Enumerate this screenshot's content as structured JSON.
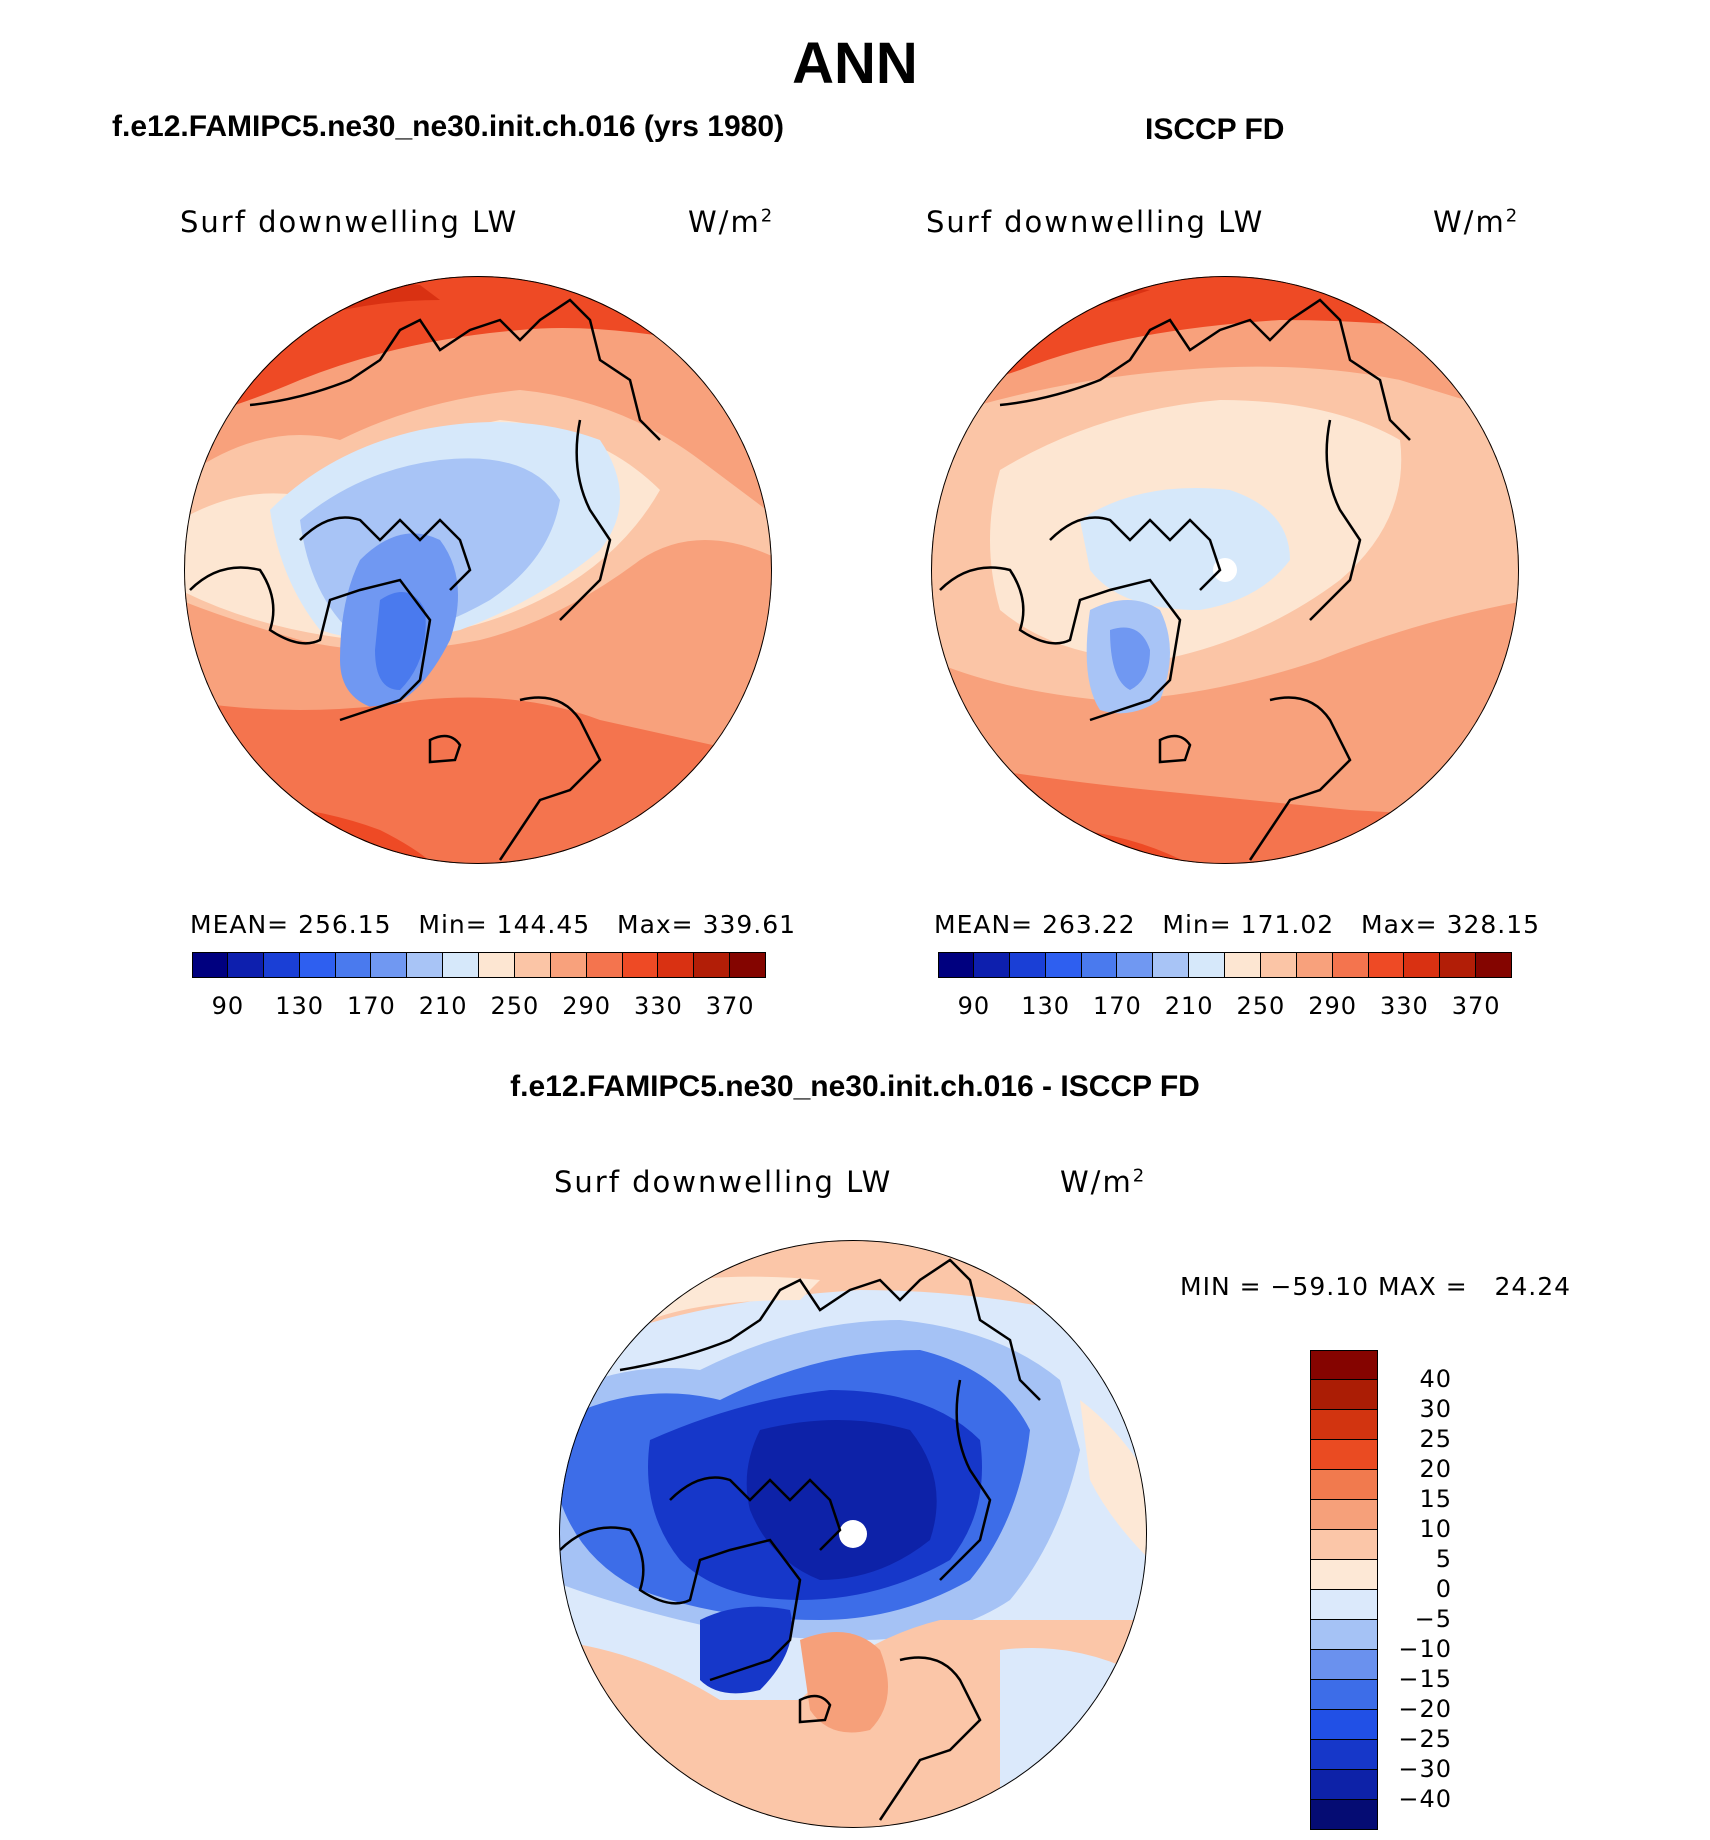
{
  "title": "ANN",
  "colors": {
    "abs": [
      "#00007f",
      "#0d1fae",
      "#1a3fd6",
      "#2e5ff0",
      "#4a7aee",
      "#7098f2",
      "#a8c4f6",
      "#d6e8fa",
      "#fde6d2",
      "#fbc5a6",
      "#f8a17c",
      "#f4744e",
      "#ee4a25",
      "#d93112",
      "#b21e07",
      "#840500"
    ],
    "diff": [
      "#050c73",
      "#0d22a8",
      "#1637c9",
      "#2150e6",
      "#3d6de8",
      "#6a91ee",
      "#a5c2f5",
      "#dbe9fb",
      "#fde8d6",
      "#fbc6a8",
      "#f6a07a",
      "#f17a4e",
      "#ea4b22",
      "#d23410",
      "#ab1d05",
      "#850400"
    ]
  },
  "panels": [
    {
      "title": "f.e12.FAMIPC5.ne30_ne30.init.ch.016 (yrs 1980)",
      "variable": "Surf downwelling LW",
      "units": "W/m",
      "units_exp": "2",
      "mean_label": "MEAN=",
      "mean": "256.15",
      "min_label": "Min=",
      "min": "144.45",
      "max_label": "Max=",
      "max": "339.61",
      "colorbar_ticks": [
        "90",
        "130",
        "170",
        "210",
        "250",
        "290",
        "330",
        "370"
      ]
    },
    {
      "title": "ISCCP FD",
      "variable": "Surf downwelling LW",
      "units": "W/m",
      "units_exp": "2",
      "mean_label": "MEAN=",
      "mean": "263.22",
      "min_label": "Min=",
      "min": "171.02",
      "max_label": "Max=",
      "max": "328.15",
      "colorbar_ticks": [
        "90",
        "130",
        "170",
        "210",
        "250",
        "290",
        "330",
        "370"
      ]
    }
  ],
  "difference": {
    "title": "f.e12.FAMIPC5.ne30_ne30.init.ch.016 - ISCCP FD",
    "variable": "Surf downwelling LW",
    "units": "W/m",
    "units_exp": "2",
    "minmax": "MIN = −59.10 MAX =   24.24",
    "colorbar_ticks": [
      "40",
      "30",
      "25",
      "20",
      "15",
      "10",
      "5",
      "0",
      "−5",
      "−10",
      "−15",
      "−20",
      "−25",
      "−30",
      "−40"
    ]
  }
}
